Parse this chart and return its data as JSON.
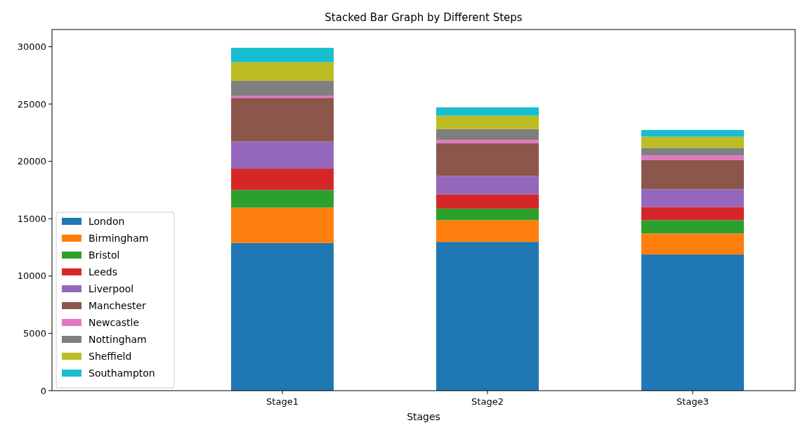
{
  "chart_data": {
    "type": "bar",
    "title": "Stacked Bar Graph by Different Steps",
    "xlabel": "Stages",
    "categories": [
      "Stage1",
      "Stage2",
      "Stage3"
    ],
    "stacked": true,
    "legend": "bottom left",
    "grid": false,
    "ylim": [
      0,
      31500
    ],
    "yticks": [
      0,
      5000,
      10000,
      15000,
      20000,
      25000,
      30000
    ],
    "series": [
      {
        "name": "London",
        "color": "#1f77b4",
        "values": [
          12880,
          12980,
          11880
        ]
      },
      {
        "name": "Birmingham",
        "color": "#ff7f0e",
        "values": [
          3080,
          1890,
          1830
        ]
      },
      {
        "name": "Bristol",
        "color": "#2ca02c",
        "values": [
          1550,
          1010,
          1160
        ]
      },
      {
        "name": "Leeds",
        "color": "#d62728",
        "values": [
          1860,
          1240,
          1150
        ]
      },
      {
        "name": "Liverpool",
        "color": "#9467bd",
        "values": [
          2360,
          1620,
          1550
        ]
      },
      {
        "name": "Manchester",
        "color": "#8c564b",
        "values": [
          3810,
          2860,
          2530
        ]
      },
      {
        "name": "Newcastle",
        "color": "#e377c2",
        "values": [
          200,
          270,
          410
        ]
      },
      {
        "name": "Nottingham",
        "color": "#7f7f7f",
        "values": [
          1280,
          950,
          670
        ]
      },
      {
        "name": "Sheffield",
        "color": "#bcbd22",
        "values": [
          1630,
          1160,
          970
        ]
      },
      {
        "name": "Southampton",
        "color": "#17becf",
        "values": [
          1250,
          730,
          590
        ]
      }
    ]
  }
}
